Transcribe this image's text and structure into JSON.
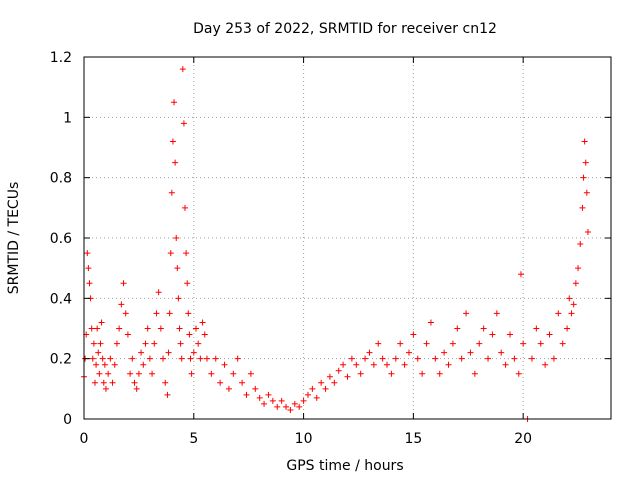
{
  "chart_data": {
    "type": "scatter",
    "title": "Day 253 of 2022, SRMTID for receiver cn12",
    "xlabel": "GPS time / hours",
    "ylabel": "SRMTID / TECUs",
    "xlim": [
      0,
      24
    ],
    "ylim": [
      0,
      1.2
    ],
    "xticks": [
      0,
      5,
      10,
      15,
      20
    ],
    "xtick_labels": [
      "0",
      "5",
      "10",
      "15",
      "20"
    ],
    "yticks": [
      0,
      0.2,
      0.4,
      0.6,
      0.8,
      1.0,
      1.2
    ],
    "ytick_labels": [
      "0",
      "0.2",
      "0.4",
      "0.6",
      "0.8",
      "1",
      "1.2"
    ],
    "grid": true,
    "marker": "+",
    "color": "#ff0000",
    "series": [
      {
        "name": "cn12",
        "points": [
          [
            0.0,
            0.14
          ],
          [
            0.05,
            0.2
          ],
          [
            0.1,
            0.28
          ],
          [
            0.15,
            0.55
          ],
          [
            0.2,
            0.5
          ],
          [
            0.25,
            0.45
          ],
          [
            0.3,
            0.4
          ],
          [
            0.35,
            0.3
          ],
          [
            0.4,
            0.2
          ],
          [
            0.45,
            0.25
          ],
          [
            0.5,
            0.12
          ],
          [
            0.55,
            0.18
          ],
          [
            0.6,
            0.3
          ],
          [
            0.65,
            0.22
          ],
          [
            0.7,
            0.15
          ],
          [
            0.75,
            0.25
          ],
          [
            0.8,
            0.32
          ],
          [
            0.85,
            0.2
          ],
          [
            0.9,
            0.12
          ],
          [
            0.95,
            0.18
          ],
          [
            1.0,
            0.1
          ],
          [
            1.1,
            0.15
          ],
          [
            1.2,
            0.2
          ],
          [
            1.3,
            0.12
          ],
          [
            1.4,
            0.18
          ],
          [
            1.5,
            0.25
          ],
          [
            1.6,
            0.3
          ],
          [
            1.7,
            0.38
          ],
          [
            1.8,
            0.45
          ],
          [
            1.9,
            0.35
          ],
          [
            2.0,
            0.28
          ],
          [
            2.1,
            0.15
          ],
          [
            2.2,
            0.2
          ],
          [
            2.3,
            0.12
          ],
          [
            2.4,
            0.1
          ],
          [
            2.5,
            0.15
          ],
          [
            2.6,
            0.22
          ],
          [
            2.7,
            0.18
          ],
          [
            2.8,
            0.25
          ],
          [
            2.9,
            0.3
          ],
          [
            3.0,
            0.2
          ],
          [
            3.1,
            0.15
          ],
          [
            3.2,
            0.25
          ],
          [
            3.3,
            0.35
          ],
          [
            3.4,
            0.42
          ],
          [
            3.5,
            0.3
          ],
          [
            3.6,
            0.2
          ],
          [
            3.7,
            0.12
          ],
          [
            3.8,
            0.08
          ],
          [
            3.85,
            0.22
          ],
          [
            3.9,
            0.35
          ],
          [
            3.95,
            0.55
          ],
          [
            4.0,
            0.75
          ],
          [
            4.05,
            0.92
          ],
          [
            4.1,
            1.05
          ],
          [
            4.15,
            0.85
          ],
          [
            4.2,
            0.6
          ],
          [
            4.25,
            0.5
          ],
          [
            4.3,
            0.4
          ],
          [
            4.35,
            0.3
          ],
          [
            4.4,
            0.25
          ],
          [
            4.45,
            0.2
          ],
          [
            4.5,
            1.16
          ],
          [
            4.55,
            0.98
          ],
          [
            4.6,
            0.7
          ],
          [
            4.65,
            0.55
          ],
          [
            4.7,
            0.45
          ],
          [
            4.75,
            0.35
          ],
          [
            4.8,
            0.28
          ],
          [
            4.85,
            0.2
          ],
          [
            4.9,
            0.15
          ],
          [
            5.0,
            0.22
          ],
          [
            5.1,
            0.3
          ],
          [
            5.2,
            0.25
          ],
          [
            5.3,
            0.2
          ],
          [
            5.4,
            0.32
          ],
          [
            5.5,
            0.28
          ],
          [
            5.6,
            0.2
          ],
          [
            5.8,
            0.15
          ],
          [
            6.0,
            0.2
          ],
          [
            6.2,
            0.12
          ],
          [
            6.4,
            0.18
          ],
          [
            6.6,
            0.1
          ],
          [
            6.8,
            0.15
          ],
          [
            7.0,
            0.2
          ],
          [
            7.2,
            0.12
          ],
          [
            7.4,
            0.08
          ],
          [
            7.6,
            0.15
          ],
          [
            7.8,
            0.1
          ],
          [
            8.0,
            0.07
          ],
          [
            8.2,
            0.05
          ],
          [
            8.4,
            0.08
          ],
          [
            8.6,
            0.06
          ],
          [
            8.8,
            0.04
          ],
          [
            9.0,
            0.06
          ],
          [
            9.2,
            0.04
          ],
          [
            9.4,
            0.03
          ],
          [
            9.6,
            0.05
          ],
          [
            9.8,
            0.04
          ],
          [
            10.0,
            0.06
          ],
          [
            10.2,
            0.08
          ],
          [
            10.4,
            0.1
          ],
          [
            10.6,
            0.07
          ],
          [
            10.8,
            0.12
          ],
          [
            11.0,
            0.1
          ],
          [
            11.2,
            0.14
          ],
          [
            11.4,
            0.12
          ],
          [
            11.6,
            0.16
          ],
          [
            11.8,
            0.18
          ],
          [
            12.0,
            0.14
          ],
          [
            12.2,
            0.2
          ],
          [
            12.4,
            0.18
          ],
          [
            12.6,
            0.15
          ],
          [
            12.8,
            0.2
          ],
          [
            13.0,
            0.22
          ],
          [
            13.2,
            0.18
          ],
          [
            13.4,
            0.25
          ],
          [
            13.6,
            0.2
          ],
          [
            13.8,
            0.18
          ],
          [
            14.0,
            0.15
          ],
          [
            14.2,
            0.2
          ],
          [
            14.4,
            0.25
          ],
          [
            14.6,
            0.18
          ],
          [
            14.8,
            0.22
          ],
          [
            15.0,
            0.28
          ],
          [
            15.2,
            0.2
          ],
          [
            15.4,
            0.15
          ],
          [
            15.6,
            0.25
          ],
          [
            15.8,
            0.32
          ],
          [
            16.0,
            0.2
          ],
          [
            16.2,
            0.15
          ],
          [
            16.4,
            0.22
          ],
          [
            16.6,
            0.18
          ],
          [
            16.8,
            0.25
          ],
          [
            17.0,
            0.3
          ],
          [
            17.2,
            0.2
          ],
          [
            17.4,
            0.35
          ],
          [
            17.6,
            0.22
          ],
          [
            17.8,
            0.15
          ],
          [
            18.0,
            0.25
          ],
          [
            18.2,
            0.3
          ],
          [
            18.4,
            0.2
          ],
          [
            18.6,
            0.28
          ],
          [
            18.8,
            0.35
          ],
          [
            19.0,
            0.22
          ],
          [
            19.2,
            0.18
          ],
          [
            19.4,
            0.28
          ],
          [
            19.6,
            0.2
          ],
          [
            19.8,
            0.15
          ],
          [
            19.9,
            0.48
          ],
          [
            20.0,
            0.25
          ],
          [
            20.2,
            0.0
          ],
          [
            20.4,
            0.2
          ],
          [
            20.6,
            0.3
          ],
          [
            20.8,
            0.25
          ],
          [
            21.0,
            0.18
          ],
          [
            21.2,
            0.28
          ],
          [
            21.4,
            0.2
          ],
          [
            21.6,
            0.35
          ],
          [
            21.8,
            0.25
          ],
          [
            22.0,
            0.3
          ],
          [
            22.1,
            0.4
          ],
          [
            22.2,
            0.35
          ],
          [
            22.3,
            0.38
          ],
          [
            22.4,
            0.45
          ],
          [
            22.5,
            0.5
          ],
          [
            22.6,
            0.58
          ],
          [
            22.7,
            0.7
          ],
          [
            22.75,
            0.8
          ],
          [
            22.8,
            0.92
          ],
          [
            22.85,
            0.85
          ],
          [
            22.9,
            0.75
          ],
          [
            22.95,
            0.62
          ]
        ]
      }
    ]
  }
}
